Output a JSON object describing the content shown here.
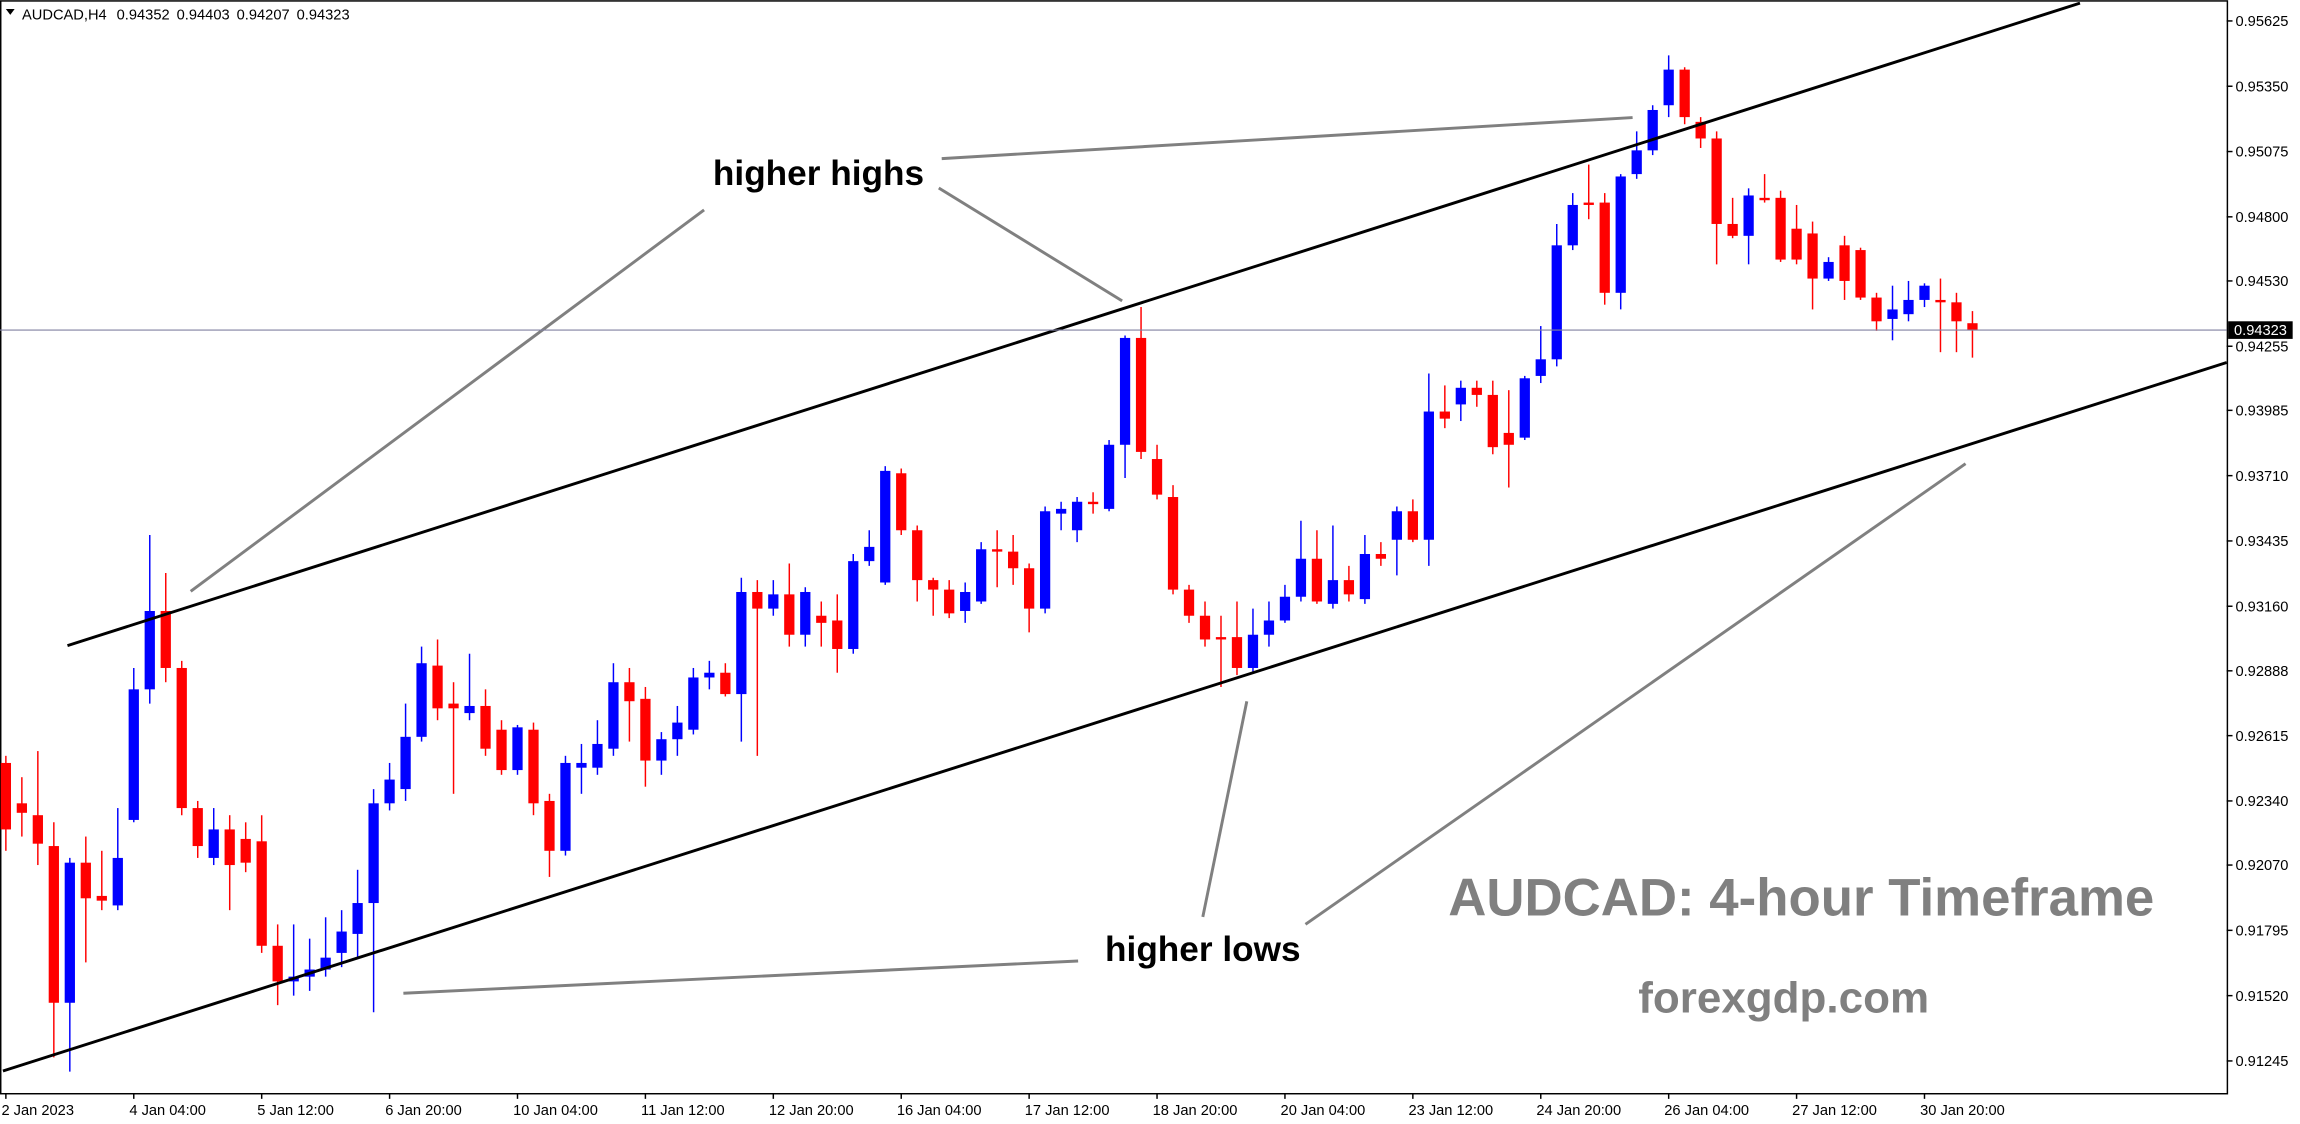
{
  "chart_data": {
    "type": "candlestick",
    "symbol": "AUDCAD,H4",
    "up_color": "#0000ff",
    "down_color": "#ff0000",
    "ylim": [
      0.9111,
      0.957
    ],
    "yticks": [
      0.95625,
      {
        "value": 0.9535,
        "label": "0.95350"
      },
      0.95075,
      {
        "value": 0.948,
        "label": "0.94800"
      },
      {
        "value": 0.9453,
        "label": "0.94530"
      },
      0.94255,
      0.93985,
      {
        "value": 0.9371,
        "label": "0.93710"
      },
      0.93435,
      {
        "value": 0.9316,
        "label": "0.93160"
      },
      0.92888,
      0.92615,
      {
        "value": 0.9234,
        "label": "0.92340"
      },
      {
        "value": 0.9207,
        "label": "0.92070"
      },
      0.91795,
      {
        "value": 0.9152,
        "label": "0.91520"
      },
      0.91245
    ],
    "categories": [
      "2 Jan 2023",
      null,
      null,
      null,
      null,
      null,
      null,
      null,
      "4 Jan 04:00",
      null,
      null,
      null,
      null,
      null,
      null,
      null,
      "5 Jan 12:00",
      null,
      null,
      null,
      null,
      null,
      null,
      null,
      "6 Jan 20:00",
      null,
      null,
      null,
      null,
      null,
      null,
      null,
      "10 Jan 04:00",
      null,
      null,
      null,
      null,
      null,
      null,
      null,
      "11 Jan 12:00",
      null,
      null,
      null,
      null,
      null,
      null,
      null,
      "12 Jan 20:00",
      null,
      null,
      null,
      null,
      null,
      null,
      null,
      "16 Jan 04:00",
      null,
      null,
      null,
      null,
      null,
      null,
      null,
      "17 Jan 12:00",
      null,
      null,
      null,
      null,
      null,
      null,
      null,
      "18 Jan 20:00",
      null,
      null,
      null,
      null,
      null,
      null,
      null,
      "20 Jan 04:00",
      null,
      null,
      null,
      null,
      null,
      null,
      null,
      "23 Jan 12:00",
      null,
      null,
      null,
      null,
      null,
      null,
      null,
      "24 Jan 20:00",
      null,
      null,
      null,
      null,
      null,
      null,
      null,
      "26 Jan 04:00",
      null,
      null,
      null,
      null,
      null,
      null,
      null,
      "27 Jan 12:00",
      null,
      null,
      null,
      null,
      null,
      null,
      null,
      "30 Jan 20:00",
      null,
      null,
      null
    ],
    "open": [
      0.925,
      0.9233,
      0.9228,
      0.9215,
      0.9149,
      0.9208,
      0.9194,
      0.919,
      0.9226,
      0.9281,
      0.9314,
      0.929,
      0.9231,
      0.921,
      0.9222,
      0.9218,
      0.9217,
      0.9173,
      0.9158,
      0.916,
      0.9163,
      0.917,
      0.9178,
      0.9191,
      0.9233,
      0.9239,
      0.9261,
      0.9291,
      0.9275,
      0.9271,
      0.9274,
      0.9264,
      0.9247,
      0.9264,
      0.9234,
      0.9213,
      0.9248,
      0.9248,
      0.9256,
      0.9284,
      0.9277,
      0.9251,
      0.926,
      0.9264,
      0.9286,
      0.9288,
      0.9279,
      0.9322,
      0.9315,
      0.9321,
      0.9304,
      0.9312,
      0.931,
      0.9298,
      0.9335,
      0.9326,
      0.9372,
      0.9348,
      0.9327,
      0.9323,
      0.9314,
      0.9318,
      0.934,
      0.9339,
      0.9332,
      0.9315,
      0.9355,
      0.9348,
      0.936,
      0.9357,
      0.9384,
      0.9429,
      0.9378,
      0.9362,
      0.9323,
      0.9312,
      0.9303,
      0.9303,
      0.929,
      0.9304,
      0.931,
      0.932,
      0.9336,
      0.9317,
      0.9327,
      0.9319,
      0.9338,
      0.9344,
      0.9356,
      0.9344,
      0.9398,
      0.9401,
      0.9408,
      0.9405,
      0.9389,
      0.9387,
      0.9413,
      0.942,
      0.9468,
      0.9486,
      0.9486,
      0.9448,
      0.9498,
      0.9508,
      0.9527,
      0.9542,
      0.952,
      0.9513,
      0.9477,
      0.9472,
      0.9488,
      0.9488,
      0.9475,
      0.9473,
      0.9454,
      0.9468,
      0.9466,
      0.9446,
      0.9437,
      0.9439,
      0.9445,
      0.9445,
      0.9444,
      0.94352
    ],
    "high": [
      0.9253,
      0.9244,
      0.9255,
      0.9225,
      0.921,
      0.9219,
      0.9213,
      0.9231,
      0.929,
      0.9346,
      0.933,
      0.9293,
      0.9234,
      0.9231,
      0.9228,
      0.9225,
      0.9228,
      0.9182,
      0.9182,
      0.9176,
      0.9185,
      0.9188,
      0.9205,
      0.9239,
      0.925,
      0.9275,
      0.9299,
      0.9302,
      0.9284,
      0.9296,
      0.9281,
      0.9268,
      0.9266,
      0.9267,
      0.9237,
      0.9253,
      0.9258,
      0.9268,
      0.9292,
      0.929,
      0.9282,
      0.9263,
      0.9274,
      0.929,
      0.9293,
      0.9292,
      0.9328,
      0.9327,
      0.9327,
      0.9334,
      0.9324,
      0.9318,
      0.9321,
      0.9338,
      0.9348,
      0.9375,
      0.9374,
      0.935,
      0.9328,
      0.9327,
      0.9326,
      0.9343,
      0.9348,
      0.9346,
      0.9334,
      0.9358,
      0.936,
      0.9362,
      0.9364,
      0.9386,
      0.943,
      0.9442,
      0.9384,
      0.9367,
      0.9325,
      0.9318,
      0.9312,
      0.9318,
      0.9315,
      0.9318,
      0.9325,
      0.9352,
      0.9348,
      0.935,
      0.9333,
      0.9346,
      0.9343,
      0.9358,
      0.9361,
      0.9414,
      0.9409,
      0.9411,
      0.9411,
      0.9411,
      0.9407,
      0.9413,
      0.9434,
      0.9477,
      0.949,
      0.9502,
      0.949,
      0.9498,
      0.9516,
      0.9527,
      0.9548,
      0.9543,
      0.9522,
      0.9516,
      0.9488,
      0.9492,
      0.9498,
      0.9491,
      0.9485,
      0.9478,
      0.9463,
      0.9472,
      0.9467,
      0.9448,
      0.9451,
      0.9453,
      0.9452,
      0.9454,
      0.9448,
      0.94403
    ],
    "low": [
      0.9213,
      0.9219,
      0.9207,
      0.9126,
      0.912,
      0.9166,
      0.9188,
      0.9188,
      0.9225,
      0.9275,
      0.9284,
      0.9228,
      0.921,
      0.9207,
      0.9188,
      0.9204,
      0.917,
      0.9148,
      0.9152,
      0.9154,
      0.916,
      0.9164,
      0.9168,
      0.9145,
      0.923,
      0.9234,
      0.9259,
      0.9268,
      0.9237,
      0.9268,
      0.9253,
      0.9245,
      0.9245,
      0.9228,
      0.9202,
      0.9211,
      0.9237,
      0.9245,
      0.9253,
      0.9259,
      0.924,
      0.9245,
      0.9253,
      0.9262,
      0.9281,
      0.9278,
      0.9259,
      0.9253,
      0.9312,
      0.9299,
      0.9299,
      0.9299,
      0.9288,
      0.9296,
      0.9333,
      0.9325,
      0.9346,
      0.9318,
      0.9312,
      0.9311,
      0.9309,
      0.9317,
      0.9324,
      0.9325,
      0.9305,
      0.9313,
      0.9348,
      0.9343,
      0.9355,
      0.9356,
      0.937,
      0.9378,
      0.9361,
      0.9321,
      0.9309,
      0.9299,
      0.9282,
      0.9287,
      0.9288,
      0.9299,
      0.9309,
      0.9318,
      0.9317,
      0.9315,
      0.9318,
      0.9317,
      0.9333,
      0.9329,
      0.9343,
      0.9333,
      0.9391,
      0.9394,
      0.94,
      0.938,
      0.9366,
      0.9386,
      0.941,
      0.9417,
      0.9466,
      0.9479,
      0.9443,
      0.9441,
      0.9496,
      0.9506,
      0.9522,
      0.9519,
      0.9509,
      0.946,
      0.9471,
      0.946,
      0.9486,
      0.9461,
      0.946,
      0.9441,
      0.9453,
      0.9445,
      0.9445,
      0.9432,
      0.9428,
      0.9436,
      0.9442,
      0.9423,
      0.9423,
      0.94207
    ],
    "close": [
      0.9222,
      0.9229,
      0.9216,
      0.9149,
      0.9208,
      0.9193,
      0.9192,
      0.921,
      0.9281,
      0.9314,
      0.929,
      0.9231,
      0.9215,
      0.9222,
      0.9207,
      0.9208,
      0.9173,
      0.9158,
      0.916,
      0.9163,
      0.9168,
      0.9179,
      0.9191,
      0.9233,
      0.9243,
      0.9261,
      0.9292,
      0.9273,
      0.9273,
      0.9274,
      0.9256,
      0.9247,
      0.9265,
      0.9233,
      0.9213,
      0.925,
      0.925,
      0.9258,
      0.9284,
      0.9276,
      0.9251,
      0.926,
      0.9267,
      0.9286,
      0.9288,
      0.9279,
      0.9322,
      0.9315,
      0.9321,
      0.9304,
      0.9322,
      0.9309,
      0.9298,
      0.9335,
      0.9341,
      0.9373,
      0.9348,
      0.9327,
      0.9323,
      0.9313,
      0.9322,
      0.934,
      0.9339,
      0.9332,
      0.9315,
      0.9356,
      0.9357,
      0.936,
      0.9359,
      0.9384,
      0.9429,
      0.9381,
      0.9363,
      0.9323,
      0.9312,
      0.9302,
      0.9302,
      0.929,
      0.9304,
      0.931,
      0.932,
      0.9336,
      0.9318,
      0.9327,
      0.9321,
      0.9338,
      0.9336,
      0.9356,
      0.9344,
      0.9398,
      0.9395,
      0.9408,
      0.9405,
      0.9383,
      0.9384,
      0.9412,
      0.942,
      0.9468,
      0.9485,
      0.9485,
      0.9448,
      0.9497,
      0.9508,
      0.9525,
      0.9542,
      0.9522,
      0.9513,
      0.9477,
      0.9472,
      0.9489,
      0.9487,
      0.9462,
      0.9462,
      0.9454,
      0.9461,
      0.9453,
      0.9446,
      0.9436,
      0.9441,
      0.9445,
      0.9451,
      0.9444,
      0.9436,
      0.94323
    ],
    "annotations": [
      "higher highs",
      "higher lows",
      "AUDCAD: 4-hour Timeframe",
      "forexgdp.com"
    ]
  }
}
